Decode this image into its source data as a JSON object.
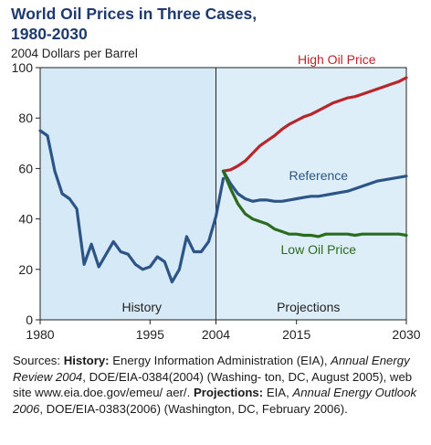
{
  "title_line1": "World Oil Prices in Three Cases,",
  "title_line2": "1980-2030",
  "subtitle": "2004 Dollars per Barrel",
  "chart_data": {
    "type": "line",
    "title": "World Oil Prices in Three Cases, 1980-2030",
    "ylabel": "2004 Dollars per Barrel",
    "xlim": [
      1980,
      2030
    ],
    "ylim": [
      0,
      100
    ],
    "x_ticks": [
      "1980",
      "1995",
      "2004",
      "2015",
      "2030"
    ],
    "x_tick_values": [
      1980,
      1995,
      2004,
      2015,
      2030
    ],
    "y_ticks": [
      "0",
      "20",
      "40",
      "60",
      "80",
      "100"
    ],
    "y_tick_values": [
      0,
      20,
      40,
      60,
      80,
      100
    ],
    "divider_year": 2004,
    "region_labels": {
      "history": "History",
      "projections": "Projections"
    },
    "colors": {
      "history_bg": "#d6e9f6",
      "projection_bg": "#ddeef9",
      "history": "#2d5486",
      "high": "#b8262b",
      "reference": "#2d5486",
      "low": "#2c6a1e"
    },
    "series": [
      {
        "name": "History",
        "key": "history",
        "x": [
          1980,
          1981,
          1982,
          1983,
          1984,
          1985,
          1986,
          1987,
          1988,
          1989,
          1990,
          1991,
          1992,
          1993,
          1994,
          1995,
          1996,
          1997,
          1998,
          1999,
          2000,
          2001,
          2002,
          2003,
          2004,
          2005
        ],
        "y": [
          75,
          73,
          59,
          50,
          48,
          44,
          22,
          30,
          21,
          26,
          31,
          27,
          26,
          22,
          20,
          21,
          25,
          23,
          15,
          20,
          33,
          27,
          27,
          31,
          41,
          56
        ]
      },
      {
        "name": "High Oil Price",
        "key": "high",
        "x": [
          2005,
          2006,
          2007,
          2008,
          2009,
          2010,
          2011,
          2012,
          2013,
          2014,
          2015,
          2016,
          2017,
          2018,
          2019,
          2020,
          2021,
          2022,
          2023,
          2024,
          2025,
          2026,
          2027,
          2028,
          2029,
          2030
        ],
        "y": [
          59,
          59.5,
          61,
          63,
          66,
          69,
          71,
          73,
          75.5,
          77.5,
          79,
          80.5,
          81.5,
          83,
          84.5,
          86,
          87,
          88,
          88.5,
          89.5,
          90.5,
          91.5,
          92.5,
          93.5,
          94.5,
          96
        ]
      },
      {
        "name": "Reference",
        "key": "reference",
        "x": [
          2005,
          2006,
          2007,
          2008,
          2009,
          2010,
          2011,
          2012,
          2013,
          2014,
          2015,
          2016,
          2017,
          2018,
          2019,
          2020,
          2021,
          2022,
          2023,
          2024,
          2025,
          2026,
          2027,
          2028,
          2029,
          2030
        ],
        "y": [
          59,
          54,
          50,
          48,
          47,
          47.5,
          47.5,
          47,
          47,
          47.5,
          48,
          48.5,
          49,
          49,
          49.5,
          50,
          50.5,
          51,
          52,
          53,
          54,
          55,
          55.5,
          56,
          56.5,
          57
        ]
      },
      {
        "name": "Low Oil Price",
        "key": "low",
        "x": [
          2005,
          2006,
          2007,
          2008,
          2009,
          2010,
          2011,
          2012,
          2013,
          2014,
          2015,
          2016,
          2017,
          2018,
          2019,
          2020,
          2021,
          2022,
          2023,
          2024,
          2025,
          2026,
          2027,
          2028,
          2029,
          2030
        ],
        "y": [
          59,
          52,
          46,
          42,
          40,
          39,
          38,
          36,
          35,
          34,
          34,
          33.5,
          33.5,
          33,
          34,
          34,
          34,
          34,
          33.5,
          34,
          34,
          34,
          34,
          34,
          34,
          33.5
        ]
      }
    ],
    "series_labels": [
      {
        "text": "High Oil Price",
        "key": "high"
      },
      {
        "text": "Reference",
        "key": "reference"
      },
      {
        "text": "Low Oil Price",
        "key": "low"
      }
    ]
  },
  "sources": {
    "sources_label": "Sources:",
    "history_label": "History:",
    "history_text_1": "Energy Information Administration (EIA),",
    "history_italic": "Annual Energy Review 2004",
    "history_text_2": ", DOE/EIA-0384(2004) (Washing- ton, DC, August 2005), web site www.eia.doe.gov/emeu/ aer/.",
    "projections_label": "Projections:",
    "projections_text_1": "EIA,",
    "projections_italic": "Annual Energy Outlook 2006",
    "projections_text_2": ", DOE/EIA-0383(2006) (Washington, DC, February 2006)."
  }
}
